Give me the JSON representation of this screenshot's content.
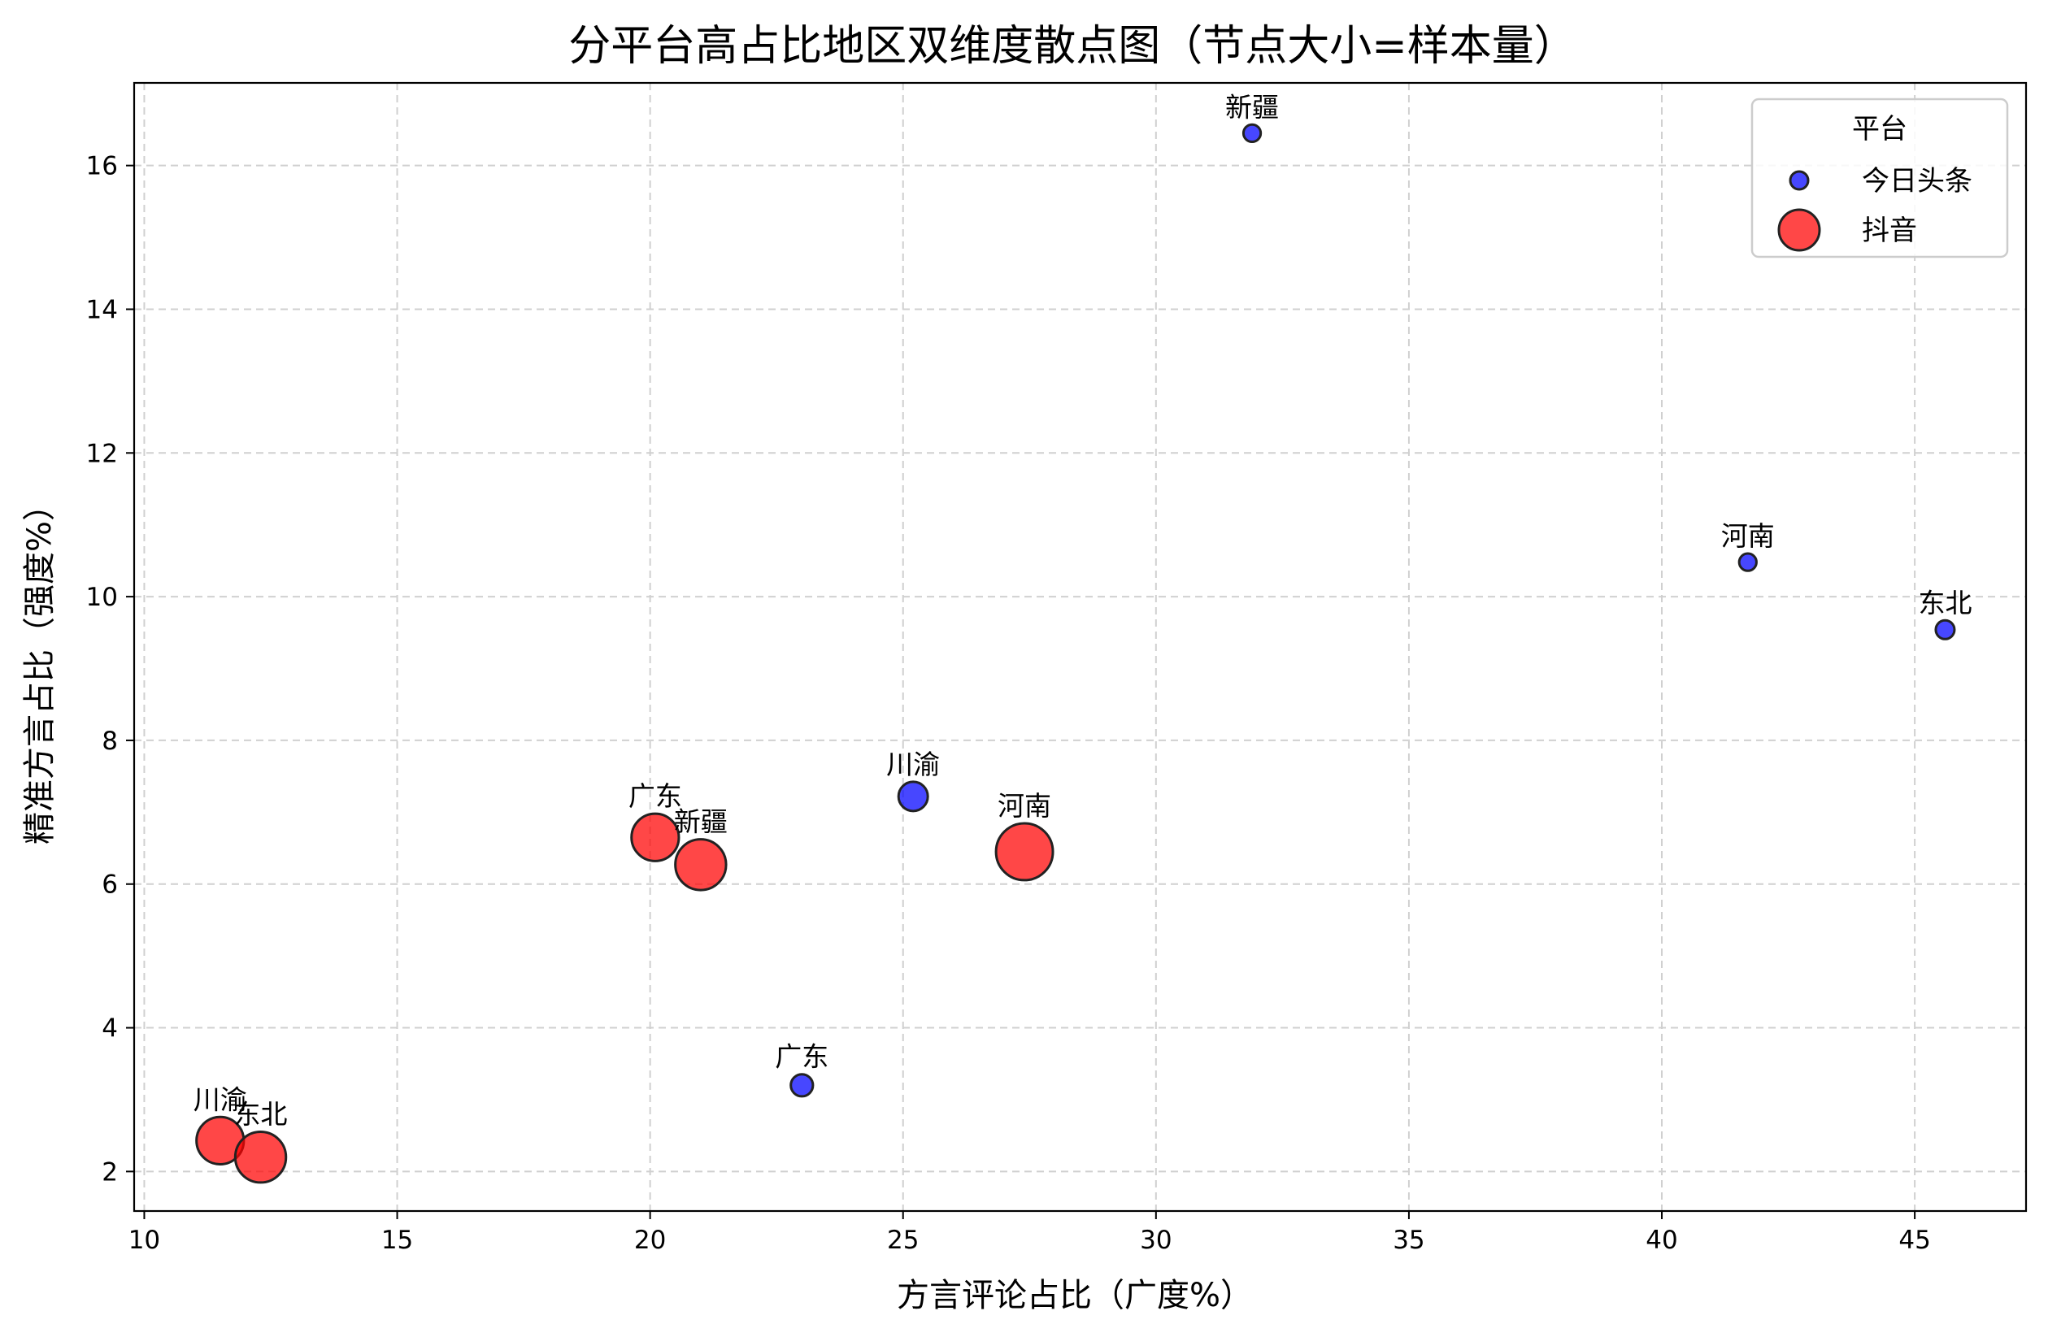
{
  "chart_data": {
    "type": "scatter",
    "title": "分平台高占比地区双维度散点图（节点大小=样本量）",
    "xlabel": "方言评论占比（广度%）",
    "ylabel": "精准方言占比（强度%）",
    "xlim": [
      9.8,
      47.2
    ],
    "ylim": [
      1.45,
      17.15
    ],
    "xticks": [
      10,
      15,
      20,
      25,
      30,
      35,
      40,
      45
    ],
    "yticks": [
      2,
      4,
      6,
      8,
      10,
      12,
      14,
      16
    ],
    "grid": true,
    "legend": {
      "title": "平台",
      "placement": "top-right"
    },
    "series": [
      {
        "name": "今日头条",
        "color": "#0000ff",
        "points": [
          {
            "label": "新疆",
            "x": 31.9,
            "y": 16.45,
            "size": 3
          },
          {
            "label": "河南",
            "x": 41.7,
            "y": 10.48,
            "size": 3
          },
          {
            "label": "东北",
            "x": 45.6,
            "y": 9.54,
            "size": 4
          },
          {
            "label": "川渝",
            "x": 25.2,
            "y": 7.22,
            "size": 16
          },
          {
            "label": "广东",
            "x": 23.0,
            "y": 3.2,
            "size": 7
          }
        ]
      },
      {
        "name": "抖音",
        "color": "#ff0000",
        "points": [
          {
            "label": "广东",
            "x": 20.1,
            "y": 6.65,
            "size": 55
          },
          {
            "label": "新疆",
            "x": 21.0,
            "y": 6.27,
            "size": 65
          },
          {
            "label": "河南",
            "x": 27.4,
            "y": 6.45,
            "size": 85
          },
          {
            "label": "川渝",
            "x": 11.5,
            "y": 2.43,
            "size": 55
          },
          {
            "label": "东北",
            "x": 12.3,
            "y": 2.2,
            "size": 65
          }
        ]
      }
    ]
  }
}
